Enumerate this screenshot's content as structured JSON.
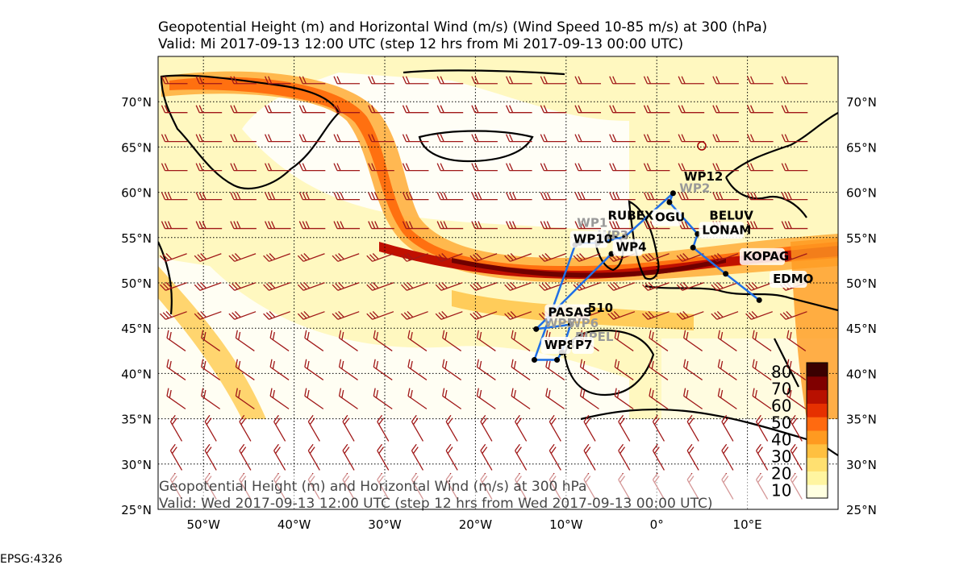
{
  "title_line1": "Geopotential Height (m) and Horizontal Wind (m/s) (Wind Speed 10-85 m/s) at 300 (hPa)",
  "title_line2": "Valid: Mi 2017-09-13 12:00 UTC (step 12 hrs from Mi 2017-09-13 00:00 UTC)",
  "inner_title_line1": "Geopotential Height (m) and Horizontal Wind (m/s) at 300 hPa",
  "inner_title_line2": "Valid: Wed 2017-09-13 12:00 UTC (step 12 hrs from Wed 2017-09-13 00:00 UTC)",
  "projection_label": "EPSG:4326",
  "map_extent": {
    "lon_min": -55,
    "lon_max": 20,
    "lat_min": 25,
    "lat_max": 75
  },
  "lat_ticks": [
    {
      "value": 25,
      "label": "25°N"
    },
    {
      "value": 30,
      "label": "30°N"
    },
    {
      "value": 35,
      "label": "35°N"
    },
    {
      "value": 40,
      "label": "40°N"
    },
    {
      "value": 45,
      "label": "45°N"
    },
    {
      "value": 50,
      "label": "50°N"
    },
    {
      "value": 55,
      "label": "55°N"
    },
    {
      "value": 60,
      "label": "60°N"
    },
    {
      "value": 65,
      "label": "65°N"
    },
    {
      "value": 70,
      "label": "70°N"
    }
  ],
  "lon_ticks": [
    {
      "value": -50,
      "label": "50°W"
    },
    {
      "value": -40,
      "label": "40°W"
    },
    {
      "value": -30,
      "label": "30°W"
    },
    {
      "value": -20,
      "label": "20°W"
    },
    {
      "value": -10,
      "label": "10°W"
    },
    {
      "value": 0,
      "label": "0°"
    },
    {
      "value": 10,
      "label": "10°E"
    }
  ],
  "colorbar": {
    "labels": [
      "10",
      "20",
      "30",
      "40",
      "50",
      "60",
      "70",
      "80"
    ],
    "colors": [
      "#ffffe0",
      "#fff5a0",
      "#ffe070",
      "#ffc040",
      "#ff9a20",
      "#ff6a10",
      "#e63000",
      "#b81000",
      "#800000",
      "#3a0000"
    ]
  },
  "flight_route_color": "#1f6fe6",
  "flight_route": [
    {
      "name": "EDMO",
      "lon": 11.3,
      "lat": 48.1
    },
    {
      "name": "KOPAG",
      "lon": 7.6,
      "lat": 51.0
    },
    {
      "name": "LONAM",
      "lon": 4.0,
      "lat": 53.9
    },
    {
      "name": "BELUV",
      "lon": 4.5,
      "lat": 55.4
    },
    {
      "name": "OGU",
      "lon": 1.4,
      "lat": 58.9
    },
    {
      "name": "WP12",
      "lon": 1.8,
      "lat": 59.9
    },
    {
      "name": "RUBEX",
      "lon": -3.5,
      "lat": 55.1
    },
    {
      "name": "WP3",
      "lon": -6.5,
      "lat": 54.4
    },
    {
      "name": "WP10",
      "lon": -8.5,
      "lat": 54.4
    },
    {
      "name": "WP1",
      "lon": -9.0,
      "lat": 54.2
    },
    {
      "name": "WP8",
      "lon": -13.5,
      "lat": 41.5
    },
    {
      "name": "WP7",
      "lon": -11.0,
      "lat": 41.5
    },
    {
      "name": "PIPEL",
      "lon": -10.5,
      "lat": 42.3
    },
    {
      "name": "WP6",
      "lon": -9.5,
      "lat": 45.4
    },
    {
      "name": "PASAS",
      "lon": -13.3,
      "lat": 44.9
    },
    {
      "name": "WP4",
      "lon": -5.0,
      "lat": 53.2
    }
  ],
  "waypoint_labels": [
    {
      "text": "EDMO",
      "lon": 12.8,
      "lat": 50.0,
      "style": "box"
    },
    {
      "text": "KOPAG",
      "lon": 9.5,
      "lat": 52.5,
      "style": "box"
    },
    {
      "text": "LONAM",
      "lon": 5.0,
      "lat": 55.4,
      "style": "box"
    },
    {
      "text": "BELUV",
      "lon": 5.8,
      "lat": 57.0,
      "style": "plain"
    },
    {
      "text": "OGU",
      "lon": -0.2,
      "lat": 56.8,
      "style": "box"
    },
    {
      "text": "WP12",
      "lon": 3.0,
      "lat": 61.3,
      "style": "plain"
    },
    {
      "text": "WP2",
      "lon": 2.5,
      "lat": 60.0,
      "style": "faded"
    },
    {
      "text": "RUBEX",
      "lon": -5.4,
      "lat": 57.0,
      "style": "plain"
    },
    {
      "text": "WP1",
      "lon": -8.8,
      "lat": 56.2,
      "style": "faded"
    },
    {
      "text": "WP3",
      "lon": -6.5,
      "lat": 54.8,
      "style": "faded"
    },
    {
      "text": "WP10",
      "lon": -9.2,
      "lat": 54.4,
      "style": "box"
    },
    {
      "text": "WP4",
      "lon": -4.5,
      "lat": 53.5,
      "style": "box"
    },
    {
      "text": "PASAS",
      "lon": -12.0,
      "lat": 46.3,
      "style": "box"
    },
    {
      "text": "510",
      "lon": -7.6,
      "lat": 46.8,
      "style": "plain"
    },
    {
      "text": "WP5",
      "lon": -12.4,
      "lat": 45.1,
      "style": "faded"
    },
    {
      "text": "WP6",
      "lon": -9.8,
      "lat": 45.1,
      "style": "faded"
    },
    {
      "text": "PIPEL",
      "lon": -9.0,
      "lat": 43.6,
      "style": "faded"
    },
    {
      "text": "WP8",
      "lon": -12.4,
      "lat": 42.7,
      "style": "box"
    },
    {
      "text": "P7",
      "lon": -9.0,
      "lat": 42.7,
      "style": "box"
    }
  ]
}
